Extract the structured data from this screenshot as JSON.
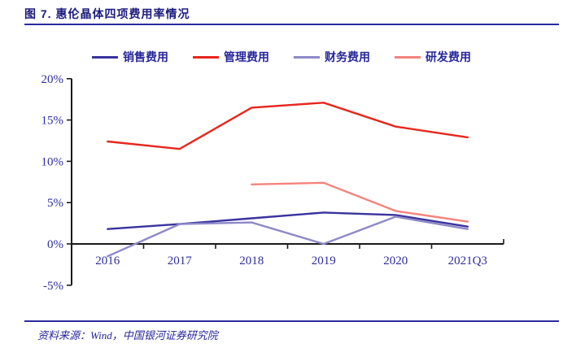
{
  "header": {
    "title": "图 7. 惠伦晶体四项费用率情况"
  },
  "footer": {
    "source": "资料来源：Wind，中国银河证券研究院"
  },
  "colors": {
    "accent_navy": "#2b2b9e",
    "title_navy": "#1b1b80",
    "axis_black": "#1a1a1a",
    "series_sales": "#39339e",
    "series_admin": "#e8261d",
    "series_finance": "#8d89c8",
    "series_rnd": "#f4837d"
  },
  "chart_data": {
    "type": "line",
    "title": "惠伦晶体四项费用率情况",
    "categories": [
      "2016",
      "2017",
      "2018",
      "2019",
      "2020",
      "2021Q3"
    ],
    "series": [
      {
        "name": "销售费用",
        "color": "#39339e",
        "values": [
          1.8,
          2.4,
          3.1,
          3.8,
          3.5,
          2.1
        ]
      },
      {
        "name": "管理费用",
        "color": "#e8261d",
        "values": [
          12.4,
          11.5,
          16.5,
          17.1,
          14.2,
          12.9
        ]
      },
      {
        "name": "财务费用",
        "color": "#8d89c8",
        "values": [
          -1.5,
          2.4,
          2.6,
          0.0,
          3.3,
          1.8
        ]
      },
      {
        "name": "研发费用",
        "color": "#f4837d",
        "values": [
          null,
          null,
          7.2,
          7.4,
          4.0,
          2.7
        ]
      }
    ],
    "xlabel": "",
    "ylabel": "",
    "ylim": [
      -5,
      20
    ],
    "y_ticks": [
      {
        "value": 20,
        "label": "20%"
      },
      {
        "value": 15,
        "label": "15%"
      },
      {
        "value": 10,
        "label": "10%"
      },
      {
        "value": 5,
        "label": "5%"
      },
      {
        "value": 0,
        "label": "0%"
      },
      {
        "value": -5,
        "label": "-5%"
      }
    ],
    "legend_position": "top",
    "grid": false
  }
}
